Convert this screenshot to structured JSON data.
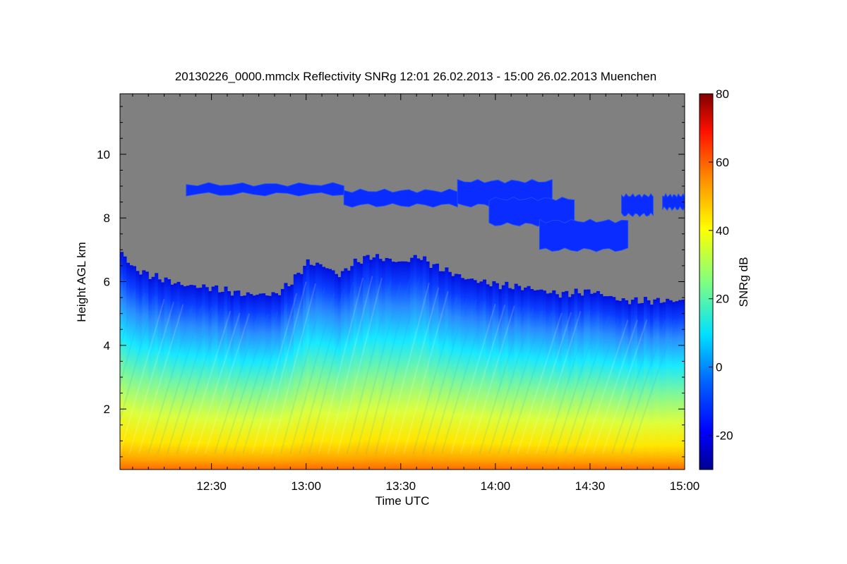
{
  "chart_data": {
    "type": "heatmap",
    "title": "20130226_0000.mmclx Reflectivity SNRg   12:01 26.02.2013 - 15:00 26.02.2013 Muenchen",
    "xlabel": "Time UTC",
    "ylabel": "Height AGL km",
    "x_ticks": [
      "12:30",
      "13:00",
      "13:30",
      "14:00",
      "14:30",
      "15:00"
    ],
    "x_tick_minutes": [
      30,
      60,
      90,
      120,
      150,
      180
    ],
    "xlim_minutes": [
      1,
      180
    ],
    "y_ticks": [
      "2",
      "4",
      "6",
      "8",
      "10"
    ],
    "y_tick_values": [
      2,
      4,
      6,
      8,
      10
    ],
    "ylim": [
      0.1,
      11.9
    ],
    "colorbar": {
      "label": "SNRg dB",
      "ticks": [
        "-20",
        "0",
        "20",
        "40",
        "60",
        "80"
      ],
      "tick_values": [
        -20,
        0,
        20,
        40,
        60,
        80
      ],
      "range": [
        -30,
        80
      ]
    },
    "no_signal_color": "#808080",
    "colormap": [
      "#00008f",
      "#0000ff",
      "#0080ff",
      "#00ffff",
      "#80ff80",
      "#ffff00",
      "#ff8000",
      "#ff0000",
      "#800000"
    ],
    "echo_top_km": [
      [
        1,
        6.9
      ],
      [
        5,
        6.4
      ],
      [
        10,
        6.2
      ],
      [
        20,
        5.9
      ],
      [
        30,
        5.8
      ],
      [
        40,
        5.6
      ],
      [
        50,
        5.6
      ],
      [
        55,
        6.0
      ],
      [
        60,
        6.6
      ],
      [
        65,
        6.5
      ],
      [
        70,
        6.2
      ],
      [
        75,
        6.6
      ],
      [
        80,
        6.8
      ],
      [
        90,
        6.6
      ],
      [
        95,
        6.8
      ],
      [
        100,
        6.5
      ],
      [
        110,
        6.1
      ],
      [
        115,
        6.0
      ],
      [
        120,
        5.9
      ],
      [
        130,
        5.8
      ],
      [
        140,
        5.6
      ],
      [
        150,
        5.7
      ],
      [
        160,
        5.4
      ],
      [
        170,
        5.4
      ],
      [
        180,
        5.4
      ]
    ],
    "upper_layers": [
      {
        "t_start": 22,
        "t_end": 72,
        "base_km": 8.75,
        "top_km": 9.05
      },
      {
        "t_start": 72,
        "t_end": 108,
        "base_km": 8.4,
        "top_km": 8.85
      },
      {
        "t_start": 108,
        "t_end": 138,
        "base_km": 8.4,
        "top_km": 9.15
      },
      {
        "t_start": 118,
        "t_end": 145,
        "base_km": 7.8,
        "top_km": 8.6
      },
      {
        "t_start": 134,
        "t_end": 162,
        "base_km": 7.0,
        "top_km": 7.9
      },
      {
        "t_start": 160,
        "t_end": 170,
        "base_km": 8.1,
        "top_km": 8.7
      },
      {
        "t_start": 173,
        "t_end": 180,
        "base_km": 8.3,
        "top_km": 8.7
      }
    ]
  }
}
